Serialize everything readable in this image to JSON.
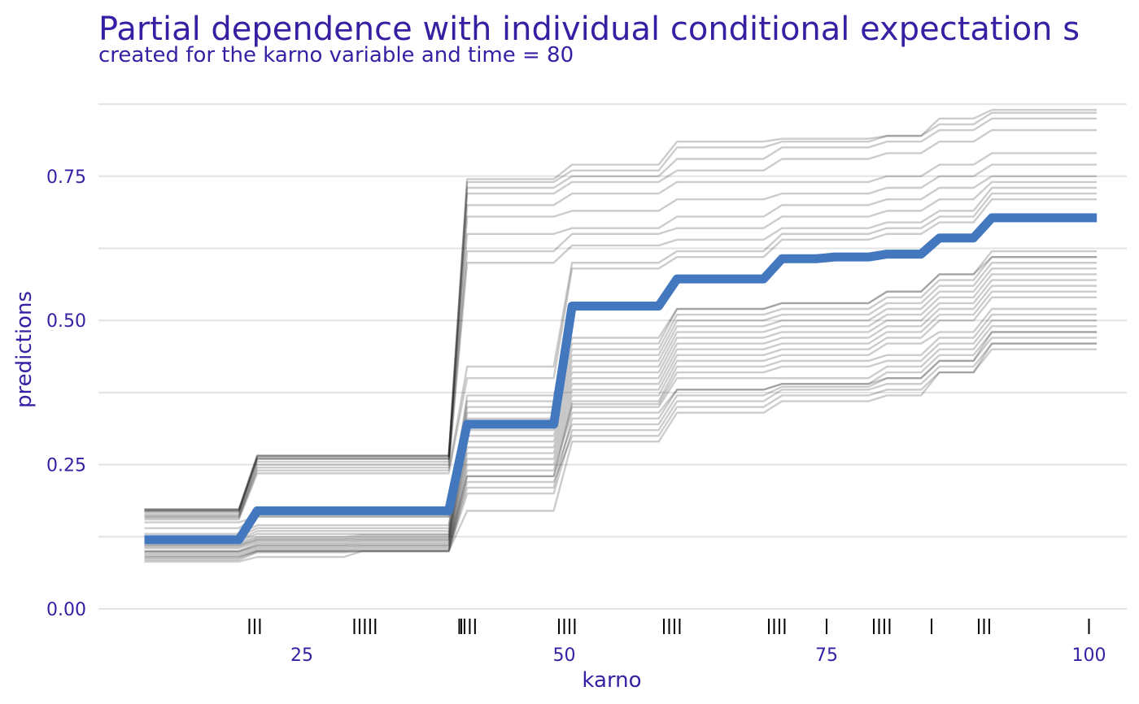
{
  "chart_data": {
    "type": "line",
    "title": "Partial dependence with individual conditional expectation s",
    "subtitle": "created for the karno variable and time = 80",
    "xlabel": "karno",
    "ylabel": "predictions",
    "xlim": [
      10,
      100
    ],
    "ylim": [
      0,
      0.87
    ],
    "grid": true,
    "x_ticks": [
      25,
      50,
      75,
      100
    ],
    "x_tick_labels": [
      "25",
      "50",
      "75",
      "100"
    ],
    "y_ticks": [
      0,
      0.25,
      0.5,
      0.75
    ],
    "y_tick_labels": [
      "0.00",
      "0.25",
      "0.50",
      "0.75"
    ],
    "y_minor_gridlines": [
      0.125,
      0.375,
      0.625,
      0.875
    ],
    "breakpoints": [
      20,
      30,
      40,
      50,
      60,
      70,
      75,
      80,
      85,
      90
    ],
    "series": [
      {
        "role": "mean",
        "color": "#4378bf",
        "x": [
          10,
          20,
          30,
          40,
          50,
          60,
          70,
          75,
          80,
          85,
          90,
          100
        ],
        "y": [
          0.12,
          0.17,
          0.17,
          0.32,
          0.525,
          0.572,
          0.607,
          0.61,
          0.615,
          0.643,
          0.678,
          0.678
        ]
      }
    ],
    "ice_curves": {
      "color": "#000000",
      "x": [
        10,
        20,
        30,
        40,
        50,
        60,
        70,
        75,
        80,
        85,
        90,
        100
      ],
      "curves": [
        [
          0.082,
          0.09,
          0.1,
          0.17,
          0.29,
          0.34,
          0.36,
          0.36,
          0.37,
          0.41,
          0.45,
          0.45
        ],
        [
          0.09,
          0.1,
          0.1,
          0.22,
          0.3,
          0.35,
          0.37,
          0.37,
          0.38,
          0.41,
          0.46,
          0.46
        ],
        [
          0.085,
          0.098,
          0.1,
          0.2,
          0.31,
          0.36,
          0.38,
          0.38,
          0.39,
          0.42,
          0.46,
          0.46
        ],
        [
          0.088,
          0.1,
          0.102,
          0.23,
          0.32,
          0.37,
          0.385,
          0.385,
          0.4,
          0.43,
          0.47,
          0.47
        ],
        [
          0.092,
          0.102,
          0.105,
          0.21,
          0.33,
          0.38,
          0.39,
          0.39,
          0.4,
          0.43,
          0.48,
          0.48
        ],
        [
          0.095,
          0.105,
          0.108,
          0.24,
          0.34,
          0.38,
          0.39,
          0.39,
          0.41,
          0.44,
          0.48,
          0.48
        ],
        [
          0.098,
          0.108,
          0.11,
          0.25,
          0.35,
          0.4,
          0.4,
          0.4,
          0.42,
          0.45,
          0.49,
          0.49
        ],
        [
          0.1,
          0.11,
          0.112,
          0.23,
          0.355,
          0.41,
          0.42,
          0.42,
          0.43,
          0.46,
          0.5,
          0.5
        ],
        [
          0.1,
          0.112,
          0.115,
          0.26,
          0.36,
          0.42,
          0.43,
          0.43,
          0.44,
          0.47,
          0.51,
          0.51
        ],
        [
          0.105,
          0.115,
          0.118,
          0.27,
          0.37,
          0.43,
          0.44,
          0.44,
          0.46,
          0.48,
          0.52,
          0.52
        ],
        [
          0.108,
          0.118,
          0.12,
          0.28,
          0.38,
          0.44,
          0.45,
          0.45,
          0.47,
          0.5,
          0.54,
          0.54
        ],
        [
          0.11,
          0.12,
          0.122,
          0.29,
          0.39,
          0.45,
          0.46,
          0.46,
          0.48,
          0.51,
          0.55,
          0.55
        ],
        [
          0.112,
          0.122,
          0.125,
          0.3,
          0.4,
          0.46,
          0.47,
          0.47,
          0.49,
          0.52,
          0.56,
          0.56
        ],
        [
          0.115,
          0.125,
          0.128,
          0.31,
          0.41,
          0.47,
          0.48,
          0.48,
          0.5,
          0.53,
          0.57,
          0.57
        ],
        [
          0.118,
          0.13,
          0.13,
          0.32,
          0.42,
          0.48,
          0.49,
          0.49,
          0.51,
          0.54,
          0.58,
          0.58
        ],
        [
          0.12,
          0.135,
          0.135,
          0.33,
          0.43,
          0.49,
          0.5,
          0.5,
          0.52,
          0.55,
          0.59,
          0.59
        ],
        [
          0.125,
          0.14,
          0.14,
          0.34,
          0.44,
          0.5,
          0.51,
          0.51,
          0.53,
          0.56,
          0.6,
          0.6
        ],
        [
          0.13,
          0.145,
          0.145,
          0.35,
          0.45,
          0.51,
          0.52,
          0.52,
          0.54,
          0.57,
          0.61,
          0.61
        ],
        [
          0.14,
          0.16,
          0.16,
          0.36,
          0.46,
          0.52,
          0.53,
          0.53,
          0.55,
          0.58,
          0.61,
          0.61
        ],
        [
          0.15,
          0.16,
          0.16,
          0.37,
          0.47,
          0.52,
          0.53,
          0.53,
          0.55,
          0.58,
          0.62,
          0.62
        ],
        [
          0.155,
          0.235,
          0.235,
          0.4,
          0.59,
          0.61,
          0.64,
          0.64,
          0.65,
          0.67,
          0.71,
          0.71
        ],
        [
          0.158,
          0.24,
          0.24,
          0.42,
          0.6,
          0.62,
          0.65,
          0.65,
          0.66,
          0.68,
          0.72,
          0.72
        ],
        [
          0.16,
          0.245,
          0.245,
          0.6,
          0.63,
          0.64,
          0.66,
          0.66,
          0.67,
          0.69,
          0.73,
          0.73
        ],
        [
          0.162,
          0.25,
          0.25,
          0.62,
          0.65,
          0.66,
          0.68,
          0.68,
          0.69,
          0.71,
          0.74,
          0.74
        ],
        [
          0.165,
          0.255,
          0.255,
          0.65,
          0.66,
          0.68,
          0.7,
          0.7,
          0.71,
          0.73,
          0.75,
          0.75
        ],
        [
          0.168,
          0.26,
          0.26,
          0.68,
          0.69,
          0.71,
          0.72,
          0.72,
          0.73,
          0.75,
          0.77,
          0.77
        ],
        [
          0.17,
          0.26,
          0.26,
          0.7,
          0.72,
          0.74,
          0.74,
          0.74,
          0.75,
          0.77,
          0.79,
          0.79
        ],
        [
          0.17,
          0.262,
          0.262,
          0.72,
          0.74,
          0.76,
          0.78,
          0.78,
          0.79,
          0.81,
          0.83,
          0.83
        ],
        [
          0.172,
          0.265,
          0.265,
          0.73,
          0.75,
          0.78,
          0.8,
          0.8,
          0.81,
          0.83,
          0.85,
          0.85
        ],
        [
          0.172,
          0.265,
          0.265,
          0.74,
          0.76,
          0.8,
          0.81,
          0.81,
          0.82,
          0.84,
          0.86,
          0.86
        ],
        [
          0.173,
          0.266,
          0.266,
          0.745,
          0.77,
          0.81,
          0.815,
          0.815,
          0.82,
          0.85,
          0.865,
          0.865
        ]
      ]
    },
    "rug_x": [
      20,
      20.5,
      21,
      30,
      30.5,
      31,
      31.5,
      32,
      40,
      40.2,
      40.5,
      41,
      41.5,
      49.5,
      50,
      50.5,
      51,
      59.5,
      60,
      60.5,
      61,
      69.5,
      70,
      70.5,
      71,
      75,
      79.5,
      80,
      80.5,
      81,
      85,
      89.5,
      90,
      90.5,
      100
    ]
  }
}
